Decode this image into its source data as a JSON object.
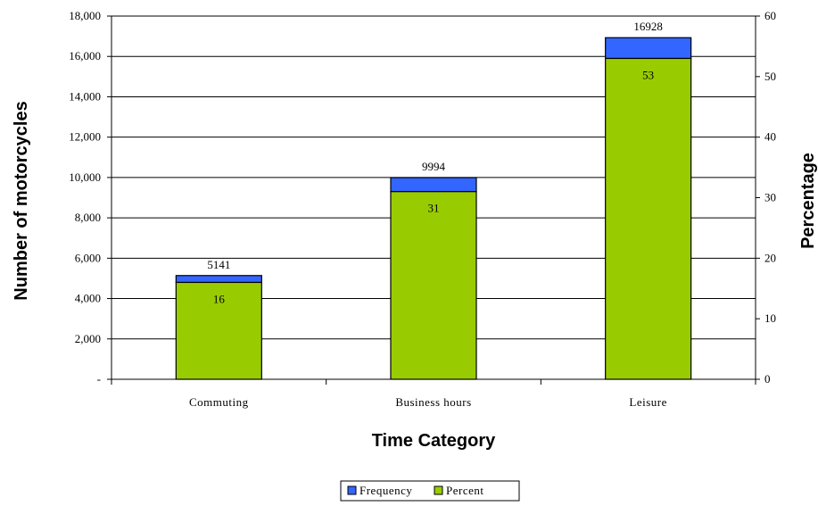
{
  "chart_data": {
    "type": "bar",
    "stacked": true,
    "categories": [
      "Commuting",
      "Business hours",
      "Leisure"
    ],
    "series": [
      {
        "name": "Frequency",
        "values": [
          5141,
          9994,
          16928
        ],
        "color": "#3366ff",
        "axis": "left"
      },
      {
        "name": "Percent",
        "values": [
          16,
          31,
          53
        ],
        "color": "#99cc00",
        "axis": "right"
      }
    ],
    "xlabel": "Time Category",
    "ylabel": "Number of motorcycles",
    "y2label": "Percentage",
    "ylim": [
      0,
      18000
    ],
    "y2lim": [
      0,
      60
    ],
    "yticks": [
      "-",
      "2,000",
      "4,000",
      "6,000",
      "8,000",
      "10,000",
      "12,000",
      "14,000",
      "16,000",
      "18,000"
    ],
    "y2ticks": [
      "0",
      "10",
      "20",
      "30",
      "40",
      "50",
      "60"
    ],
    "grid": true,
    "legend": "bottom"
  }
}
